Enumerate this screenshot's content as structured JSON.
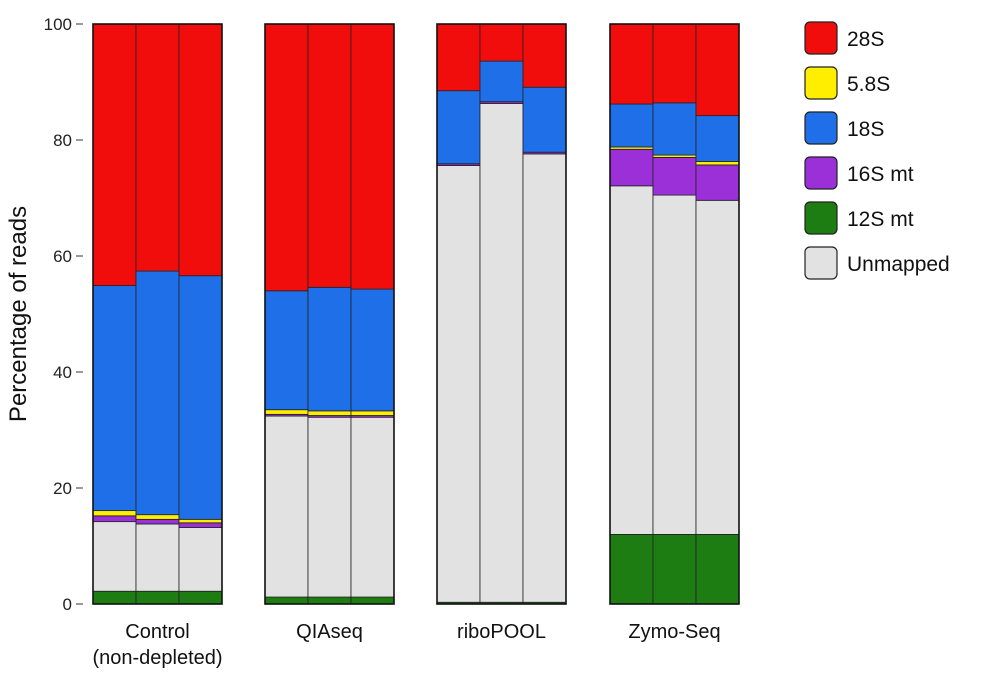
{
  "chart_data": {
    "type": "bar",
    "stacked": true,
    "ylabel": "Percentage of reads",
    "ylim": [
      0,
      100
    ],
    "yticks": [
      0,
      20,
      40,
      60,
      80,
      100
    ],
    "grid": false,
    "legend_position": "right",
    "groups": [
      {
        "label_lines": [
          "Control",
          "(non-depleted)"
        ],
        "replicates": 3
      },
      {
        "label_lines": [
          "QIAseq"
        ],
        "replicates": 3
      },
      {
        "label_lines": [
          "riboPOOL"
        ],
        "replicates": 3
      },
      {
        "label_lines": [
          "Zymo-Seq"
        ],
        "replicates": 3
      }
    ],
    "series": [
      {
        "name": "12S mt",
        "color": "#1e7d12",
        "values": [
          2.2,
          2.2,
          2.2,
          1.2,
          1.2,
          1.2,
          0.3,
          0.3,
          0.3,
          12.0,
          12.0,
          12.0
        ]
      },
      {
        "name": "Unmapped",
        "color": "#e2e2e2",
        "values": [
          12.0,
          11.6,
          11.0,
          31.2,
          31.0,
          31.0,
          75.3,
          86.0,
          77.3,
          60.1,
          58.5,
          57.6
        ]
      },
      {
        "name": "16S mt",
        "color": "#9b30d9",
        "values": [
          1.0,
          0.8,
          0.8,
          0.3,
          0.3,
          0.3,
          0.3,
          0.3,
          0.3,
          6.3,
          6.5,
          6.1
        ]
      },
      {
        "name": "5.8S",
        "color": "#ffee00",
        "values": [
          0.9,
          0.8,
          0.6,
          0.8,
          0.8,
          0.8,
          0.0,
          0.0,
          0.0,
          0.4,
          0.4,
          0.6
        ]
      },
      {
        "name": "18S",
        "color": "#1f6fe8",
        "values": [
          38.8,
          42.0,
          42.0,
          20.5,
          21.3,
          21.0,
          12.6,
          7.0,
          11.2,
          7.4,
          9.0,
          7.9
        ]
      },
      {
        "name": "28S",
        "color": "#f20d0d",
        "values": [
          45.1,
          42.6,
          43.4,
          46.0,
          45.4,
          45.7,
          11.5,
          6.4,
          10.9,
          13.8,
          13.6,
          15.8
        ]
      }
    ],
    "legend_order": [
      "28S",
      "5.8S",
      "18S",
      "16S mt",
      "12S mt",
      "Unmapped"
    ]
  }
}
